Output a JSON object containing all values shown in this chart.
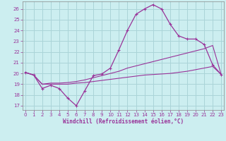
{
  "xlabel": "Windchill (Refroidissement éolien,°C)",
  "bg_color": "#cceef0",
  "grid_color": "#aad4d8",
  "line_color": "#993399",
  "x_ticks": [
    0,
    1,
    2,
    3,
    4,
    5,
    6,
    7,
    8,
    9,
    10,
    11,
    12,
    13,
    14,
    15,
    16,
    17,
    18,
    19,
    20,
    21,
    22,
    23
  ],
  "y_ticks": [
    17,
    18,
    19,
    20,
    21,
    22,
    23,
    24,
    25,
    26
  ],
  "xlim": [
    -0.3,
    23.3
  ],
  "ylim": [
    16.6,
    26.7
  ],
  "curve1_x": [
    0,
    1,
    2,
    3,
    4,
    5,
    6,
    7,
    8,
    9,
    10,
    11,
    12,
    13,
    14,
    15,
    16,
    17,
    18,
    19,
    20,
    21,
    22,
    23
  ],
  "curve1_y": [
    20.1,
    19.85,
    18.6,
    18.9,
    18.6,
    17.7,
    17.0,
    18.4,
    19.8,
    19.95,
    20.5,
    22.2,
    24.0,
    25.5,
    26.0,
    26.4,
    26.0,
    24.6,
    23.5,
    23.2,
    23.2,
    22.7,
    20.8,
    19.9
  ],
  "curve2_x": [
    0,
    1,
    2,
    3,
    4,
    5,
    6,
    7,
    8,
    9,
    10,
    11,
    12,
    13,
    14,
    15,
    16,
    17,
    18,
    19,
    20,
    21,
    22,
    23
  ],
  "curve2_y": [
    20.1,
    19.85,
    19.0,
    19.0,
    19.0,
    19.0,
    19.1,
    19.15,
    19.25,
    19.35,
    19.45,
    19.55,
    19.65,
    19.75,
    19.85,
    19.9,
    19.95,
    20.0,
    20.1,
    20.2,
    20.35,
    20.5,
    20.65,
    19.9
  ],
  "curve3_x": [
    0,
    1,
    2,
    3,
    4,
    5,
    6,
    7,
    8,
    9,
    10,
    11,
    12,
    13,
    14,
    15,
    16,
    17,
    18,
    19,
    20,
    21,
    22,
    23
  ],
  "curve3_y": [
    20.1,
    19.85,
    19.0,
    19.1,
    19.1,
    19.15,
    19.25,
    19.4,
    19.6,
    19.8,
    20.0,
    20.2,
    20.5,
    20.7,
    20.9,
    21.1,
    21.3,
    21.5,
    21.7,
    21.9,
    22.1,
    22.3,
    22.6,
    19.9
  ]
}
